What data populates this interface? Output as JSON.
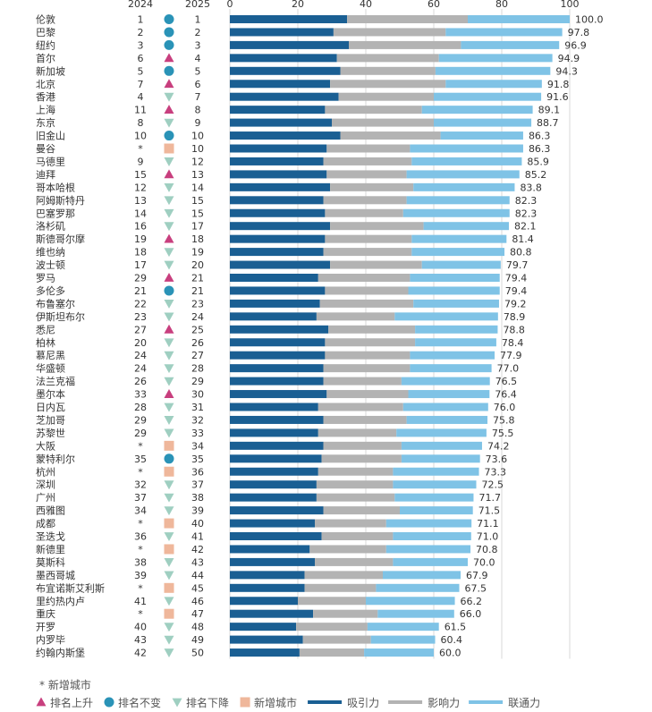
{
  "chart_data": {
    "type": "bar",
    "stacked": true,
    "orientation": "horizontal",
    "year_headers": {
      "prev": "2024",
      "curr": "2025"
    },
    "xlim": [
      0,
      100
    ],
    "x_ticks": [
      0,
      20,
      40,
      60,
      80,
      100
    ],
    "grid": true,
    "series": [
      {
        "key": "attract",
        "name": "吸引力",
        "color": "#1a5f93"
      },
      {
        "key": "influence",
        "name": "影响力",
        "color": "#b3b3b3"
      },
      {
        "key": "connect",
        "name": "联通力",
        "color": "#7fc3e6"
      }
    ],
    "cities": [
      {
        "name": "伦敦",
        "rank2024": "1",
        "rank2025": "1",
        "status": "same",
        "a": 34.5,
        "i": 35.5,
        "c": 30.0,
        "total": "100.0"
      },
      {
        "name": "巴黎",
        "rank2024": "2",
        "rank2025": "2",
        "status": "same",
        "a": 30.5,
        "i": 33.0,
        "c": 34.3,
        "total": "97.8"
      },
      {
        "name": "纽约",
        "rank2024": "3",
        "rank2025": "3",
        "status": "same",
        "a": 35.0,
        "i": 33.0,
        "c": 28.9,
        "total": "96.9"
      },
      {
        "name": "首尔",
        "rank2024": "6",
        "rank2025": "4",
        "status": "up",
        "a": 31.5,
        "i": 30.0,
        "c": 33.4,
        "total": "94.9"
      },
      {
        "name": "新加坡",
        "rank2024": "5",
        "rank2025": "5",
        "status": "same",
        "a": 32.5,
        "i": 28.0,
        "c": 33.8,
        "total": "94.3"
      },
      {
        "name": "北京",
        "rank2024": "7",
        "rank2025": "6",
        "status": "up",
        "a": 29.5,
        "i": 34.0,
        "c": 28.3,
        "total": "91.8"
      },
      {
        "name": "香港",
        "rank2024": "4",
        "rank2025": "7",
        "status": "down",
        "a": 32.0,
        "i": 28.0,
        "c": 31.6,
        "total": "91.6"
      },
      {
        "name": "上海",
        "rank2024": "11",
        "rank2025": "8",
        "status": "up",
        "a": 28.0,
        "i": 28.5,
        "c": 32.6,
        "total": "89.1"
      },
      {
        "name": "东京",
        "rank2024": "8",
        "rank2025": "9",
        "status": "down",
        "a": 30.0,
        "i": 30.0,
        "c": 28.7,
        "total": "88.7"
      },
      {
        "name": "旧金山",
        "rank2024": "10",
        "rank2025": "10",
        "status": "same",
        "a": 32.5,
        "i": 29.5,
        "c": 24.3,
        "total": "86.3"
      },
      {
        "name": "曼谷",
        "rank2024": "*",
        "rank2025": "10",
        "status": "new",
        "a": 28.5,
        "i": 24.5,
        "c": 33.3,
        "total": "86.3"
      },
      {
        "name": "马德里",
        "rank2024": "9",
        "rank2025": "12",
        "status": "down",
        "a": 27.5,
        "i": 26.0,
        "c": 32.4,
        "total": "85.9"
      },
      {
        "name": "迪拜",
        "rank2024": "15",
        "rank2025": "13",
        "status": "up",
        "a": 28.5,
        "i": 23.5,
        "c": 33.2,
        "total": "85.2"
      },
      {
        "name": "哥本哈根",
        "rank2024": "12",
        "rank2025": "14",
        "status": "down",
        "a": 29.5,
        "i": 24.5,
        "c": 29.8,
        "total": "83.8"
      },
      {
        "name": "阿姆斯特丹",
        "rank2024": "13",
        "rank2025": "15",
        "status": "down",
        "a": 27.5,
        "i": 24.5,
        "c": 30.3,
        "total": "82.3"
      },
      {
        "name": "巴塞罗那",
        "rank2024": "14",
        "rank2025": "15",
        "status": "down",
        "a": 28.0,
        "i": 23.0,
        "c": 31.3,
        "total": "82.3"
      },
      {
        "name": "洛杉矶",
        "rank2024": "16",
        "rank2025": "17",
        "status": "down",
        "a": 29.5,
        "i": 27.5,
        "c": 25.1,
        "total": "82.1"
      },
      {
        "name": "斯德哥尔摩",
        "rank2024": "19",
        "rank2025": "18",
        "status": "up",
        "a": 28.0,
        "i": 25.5,
        "c": 27.9,
        "total": "81.4"
      },
      {
        "name": "维也纳",
        "rank2024": "18",
        "rank2025": "19",
        "status": "down",
        "a": 27.5,
        "i": 26.0,
        "c": 27.3,
        "total": "80.8"
      },
      {
        "name": "波士顿",
        "rank2024": "17",
        "rank2025": "20",
        "status": "down",
        "a": 29.5,
        "i": 27.0,
        "c": 23.2,
        "total": "79.7"
      },
      {
        "name": "罗马",
        "rank2024": "29",
        "rank2025": "21",
        "status": "up",
        "a": 26.0,
        "i": 27.0,
        "c": 26.4,
        "total": "79.4"
      },
      {
        "name": "多伦多",
        "rank2024": "21",
        "rank2025": "21",
        "status": "same",
        "a": 28.0,
        "i": 24.5,
        "c": 26.9,
        "total": "79.4"
      },
      {
        "name": "布鲁塞尔",
        "rank2024": "22",
        "rank2025": "23",
        "status": "down",
        "a": 26.5,
        "i": 27.5,
        "c": 25.2,
        "total": "79.2"
      },
      {
        "name": "伊斯坦布尔",
        "rank2024": "23",
        "rank2025": "24",
        "status": "down",
        "a": 25.5,
        "i": 23.0,
        "c": 30.4,
        "total": "78.9"
      },
      {
        "name": "悉尼",
        "rank2024": "27",
        "rank2025": "25",
        "status": "up",
        "a": 29.0,
        "i": 25.5,
        "c": 24.3,
        "total": "78.8"
      },
      {
        "name": "柏林",
        "rank2024": "20",
        "rank2025": "26",
        "status": "down",
        "a": 28.0,
        "i": 26.5,
        "c": 23.9,
        "total": "78.4"
      },
      {
        "name": "慕尼黑",
        "rank2024": "24",
        "rank2025": "27",
        "status": "down",
        "a": 28.0,
        "i": 25.0,
        "c": 24.9,
        "total": "77.9"
      },
      {
        "name": "华盛顿",
        "rank2024": "24",
        "rank2025": "28",
        "status": "down",
        "a": 27.5,
        "i": 25.5,
        "c": 24.0,
        "total": "77.0"
      },
      {
        "name": "法兰克福",
        "rank2024": "26",
        "rank2025": "29",
        "status": "down",
        "a": 27.5,
        "i": 23.0,
        "c": 26.0,
        "total": "76.5"
      },
      {
        "name": "墨尔本",
        "rank2024": "33",
        "rank2025": "30",
        "status": "up",
        "a": 28.5,
        "i": 24.0,
        "c": 23.9,
        "total": "76.4"
      },
      {
        "name": "日内瓦",
        "rank2024": "28",
        "rank2025": "31",
        "status": "down",
        "a": 26.0,
        "i": 25.0,
        "c": 25.0,
        "total": "76.0"
      },
      {
        "name": "芝加哥",
        "rank2024": "29",
        "rank2025": "32",
        "status": "down",
        "a": 27.5,
        "i": 24.5,
        "c": 23.8,
        "total": "75.8"
      },
      {
        "name": "苏黎世",
        "rank2024": "29",
        "rank2025": "33",
        "status": "down",
        "a": 26.0,
        "i": 23.0,
        "c": 26.5,
        "total": "75.5"
      },
      {
        "name": "大阪",
        "rank2024": "*",
        "rank2025": "34",
        "status": "new",
        "a": 27.5,
        "i": 23.0,
        "c": 23.7,
        "total": "74.2"
      },
      {
        "name": "蒙特利尔",
        "rank2024": "35",
        "rank2025": "35",
        "status": "same",
        "a": 27.0,
        "i": 23.5,
        "c": 23.1,
        "total": "73.6"
      },
      {
        "name": "杭州",
        "rank2024": "*",
        "rank2025": "36",
        "status": "new",
        "a": 26.0,
        "i": 22.0,
        "c": 25.3,
        "total": "73.3"
      },
      {
        "name": "深圳",
        "rank2024": "32",
        "rank2025": "37",
        "status": "down",
        "a": 25.5,
        "i": 22.5,
        "c": 24.5,
        "total": "72.5"
      },
      {
        "name": "广州",
        "rank2024": "37",
        "rank2025": "38",
        "status": "down",
        "a": 25.5,
        "i": 23.0,
        "c": 23.2,
        "total": "71.7"
      },
      {
        "name": "西雅图",
        "rank2024": "34",
        "rank2025": "39",
        "status": "down",
        "a": 27.5,
        "i": 22.5,
        "c": 21.5,
        "total": "71.5"
      },
      {
        "name": "成都",
        "rank2024": "*",
        "rank2025": "40",
        "status": "new",
        "a": 25.0,
        "i": 21.0,
        "c": 25.1,
        "total": "71.1"
      },
      {
        "name": "圣迭戈",
        "rank2024": "36",
        "rank2025": "41",
        "status": "down",
        "a": 27.0,
        "i": 21.0,
        "c": 23.0,
        "total": "71.0"
      },
      {
        "name": "新德里",
        "rank2024": "*",
        "rank2025": "42",
        "status": "new",
        "a": 23.5,
        "i": 22.5,
        "c": 24.8,
        "total": "70.8"
      },
      {
        "name": "莫斯科",
        "rank2024": "38",
        "rank2025": "43",
        "status": "down",
        "a": 25.0,
        "i": 23.0,
        "c": 22.0,
        "total": "70.0"
      },
      {
        "name": "墨西哥城",
        "rank2024": "39",
        "rank2025": "44",
        "status": "down",
        "a": 22.0,
        "i": 23.0,
        "c": 22.9,
        "total": "67.9"
      },
      {
        "name": "布宜诺斯艾利斯",
        "rank2024": "*",
        "rank2025": "45",
        "status": "new",
        "a": 22.0,
        "i": 21.0,
        "c": 24.5,
        "total": "67.5"
      },
      {
        "name": "里约热内卢",
        "rank2024": "41",
        "rank2025": "46",
        "status": "down",
        "a": 20.0,
        "i": 20.0,
        "c": 26.2,
        "total": "66.2"
      },
      {
        "name": "重庆",
        "rank2024": "*",
        "rank2025": "47",
        "status": "new",
        "a": 24.5,
        "i": 19.0,
        "c": 22.5,
        "total": "66.0"
      },
      {
        "name": "开罗",
        "rank2024": "40",
        "rank2025": "48",
        "status": "down",
        "a": 19.5,
        "i": 21.0,
        "c": 21.0,
        "total": "61.5"
      },
      {
        "name": "内罗毕",
        "rank2024": "43",
        "rank2025": "49",
        "status": "down",
        "a": 21.5,
        "i": 20.0,
        "c": 18.9,
        "total": "60.4"
      },
      {
        "name": "约翰内斯堡",
        "rank2024": "42",
        "rank2025": "50",
        "status": "down",
        "a": 20.5,
        "i": 19.0,
        "c": 20.5,
        "total": "60.0"
      }
    ]
  },
  "status_styles": {
    "up": {
      "label": "排名上升",
      "color": "#c83f7e",
      "icon": "triangle-up-icon"
    },
    "same": {
      "label": "排名不变",
      "color": "#2a93b7",
      "icon": "circle-icon"
    },
    "down": {
      "label": "排名下降",
      "color": "#9fcfc1",
      "icon": "triangle-down-icon"
    },
    "new": {
      "label": "新增城市",
      "color": "#efb79b",
      "icon": "square-icon"
    }
  },
  "footnote": "*  新增城市"
}
